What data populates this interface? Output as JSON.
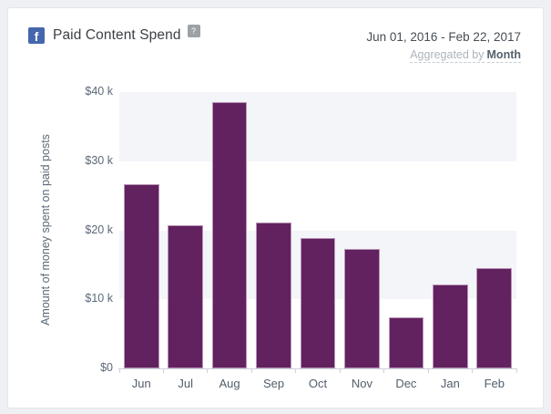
{
  "header": {
    "source_icon": "facebook-icon",
    "facebook_icon_glyph": "f",
    "title": "Paid Content Spend",
    "help_glyph": "?",
    "date_range": "Jun 01, 2016 - Feb 22, 2017",
    "aggregated_by_label": "Aggregated by",
    "aggregation_value": "Month"
  },
  "colors": {
    "bar": "#62215f",
    "band": "#f4f5f9",
    "facebook_blue": "#4467ad",
    "axis_line": "#ccd2d9",
    "card_background": "#ffffff",
    "page_background": "#eef0f4"
  },
  "chart_data": {
    "type": "bar",
    "title": "Paid Content Spend",
    "categories": [
      "Jun",
      "Jul",
      "Aug",
      "Sep",
      "Oct",
      "Nov",
      "Dec",
      "Jan",
      "Feb"
    ],
    "values": [
      26700,
      20700,
      38600,
      21100,
      18900,
      17300,
      7400,
      12100,
      14500
    ],
    "xlabel": "",
    "ylabel": "Amount of money spent on paid posts",
    "ylim": [
      0,
      40000
    ],
    "ytick_labels": [
      "$0",
      "$10 k",
      "$20 k",
      "$30 k",
      "$40 k"
    ],
    "grid": "alternating-horizontal-bands",
    "band_intervals_from_bottom": [
      1,
      3
    ],
    "legend": "none",
    "bar_color": "#62215f",
    "band_color": "#f4f5f9"
  }
}
